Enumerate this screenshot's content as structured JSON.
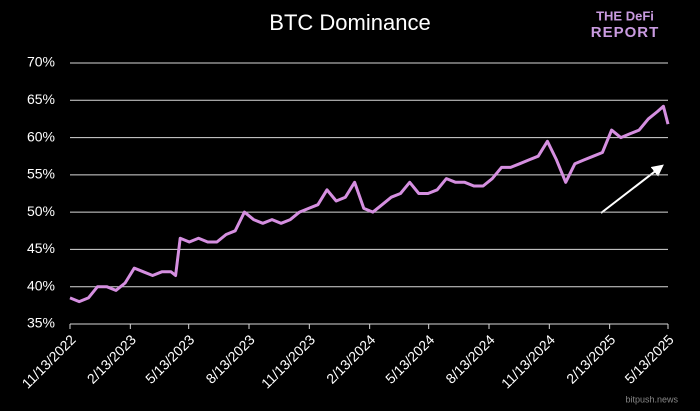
{
  "chart_data": {
    "type": "line",
    "title": "BTC Dominance",
    "logo": [
      "THE DeFi",
      "REPORT"
    ],
    "watermark": "bitpush.news",
    "x": [
      "11/13/2022",
      "11/27/2022",
      "12/11/2022",
      "12/25/2022",
      "1/8/2023",
      "1/22/2023",
      "2/5/2023",
      "2/19/2023",
      "3/5/2023",
      "3/19/2023",
      "4/2/2023",
      "4/16/2023",
      "4/23/2023",
      "4/30/2023",
      "5/14/2023",
      "5/28/2023",
      "6/11/2023",
      "6/25/2023",
      "7/9/2023",
      "7/23/2023",
      "8/6/2023",
      "8/20/2023",
      "9/3/2023",
      "9/17/2023",
      "10/1/2023",
      "10/15/2023",
      "10/29/2023",
      "11/12/2023",
      "11/26/2023",
      "12/10/2023",
      "12/24/2023",
      "1/7/2024",
      "1/21/2024",
      "2/4/2024",
      "2/18/2024",
      "3/3/2024",
      "3/17/2024",
      "3/31/2024",
      "4/14/2024",
      "4/28/2024",
      "5/12/2024",
      "5/26/2024",
      "6/9/2024",
      "6/23/2024",
      "7/7/2024",
      "7/21/2024",
      "8/4/2024",
      "8/18/2024",
      "9/1/2024",
      "9/15/2024",
      "9/29/2024",
      "10/13/2024",
      "10/27/2024",
      "11/10/2024",
      "11/24/2024",
      "12/8/2024",
      "12/22/2024",
      "1/5/2025",
      "1/19/2025",
      "2/2/2025",
      "2/16/2025",
      "3/2/2025",
      "3/16/2025",
      "3/30/2025",
      "4/13/2025",
      "4/27/2025",
      "5/6/2025",
      "5/13/2025"
    ],
    "series": [
      {
        "name": "BTC Dominance",
        "color": "#d58fe0",
        "values": [
          38.5,
          38,
          38.5,
          40,
          40,
          39.5,
          40.5,
          42.5,
          42,
          41.5,
          42,
          42,
          41.5,
          46.5,
          46,
          46.5,
          46,
          46,
          47,
          47.5,
          50,
          49,
          48.5,
          49,
          48.5,
          49,
          50,
          50.5,
          51,
          53,
          51.5,
          52,
          54,
          50.5,
          50,
          51,
          52,
          52.5,
          54,
          52.5,
          52.5,
          53,
          54.5,
          54,
          54,
          53.5,
          53.5,
          54.5,
          56,
          56,
          56.5,
          57,
          57.5,
          59.5,
          57,
          54,
          56.5,
          57,
          57.5,
          58,
          61,
          60,
          60.5,
          61,
          62.5,
          63.5,
          64.2,
          61.8
        ]
      }
    ],
    "xlim": [
      "11/13/2022",
      "5/13/2025"
    ],
    "xticks": [
      "11/13/2022",
      "2/13/2023",
      "5/13/2023",
      "8/13/2023",
      "11/13/2023",
      "2/13/2024",
      "5/13/2024",
      "8/13/2024",
      "11/13/2024",
      "2/13/2025",
      "5/13/2025"
    ],
    "ylim": [
      35,
      70
    ],
    "yticks": [
      {
        "value": 35,
        "label": "35%"
      },
      {
        "value": 40,
        "label": "40%"
      },
      {
        "value": 45,
        "label": "45%"
      },
      {
        "value": 50,
        "label": "50%"
      },
      {
        "value": 55,
        "label": "55%"
      },
      {
        "value": 60,
        "label": "60%"
      },
      {
        "value": 65,
        "label": "65%"
      },
      {
        "value": 70,
        "label": "70%"
      }
    ],
    "grid": true
  }
}
